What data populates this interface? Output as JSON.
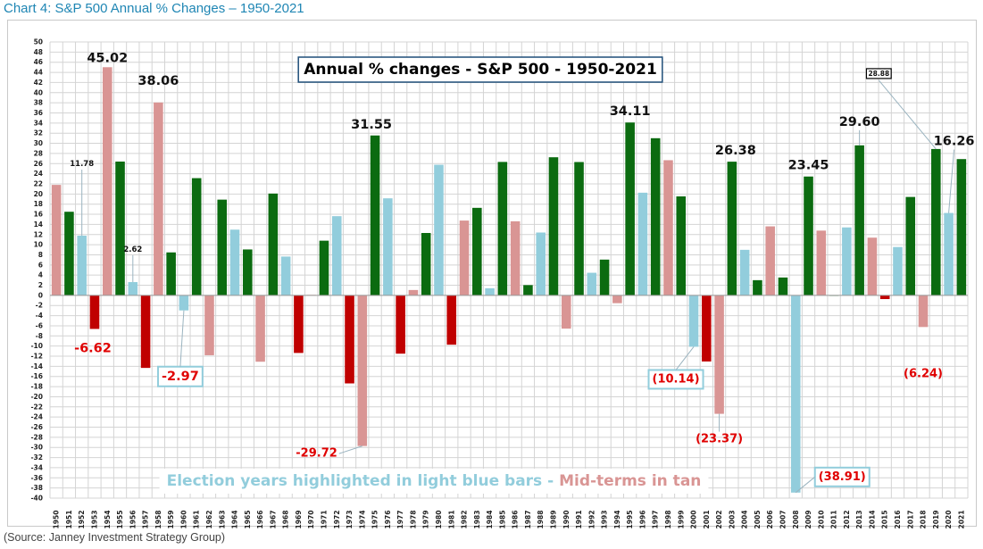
{
  "heading": "Chart 4: S&P 500 Annual % Changes – 1950-2021",
  "source": "(Source: Janney Investment Strategy Group)",
  "colors": {
    "positive_regular": "#0b6b10",
    "negative_regular": "#c00000",
    "election_year": "#92cddc",
    "midterm_year": "#d99594",
    "label_red": "#e00000",
    "grid": "#d4d4d4"
  },
  "chart_data": {
    "type": "bar",
    "title": "Annual % changes - S&P 500 - 1950-2021",
    "xlabel": "",
    "ylabel": "",
    "ylim": [
      -40,
      50
    ],
    "ytick_step": 2,
    "grid": true,
    "categories": [
      "1950",
      "1951",
      "1952",
      "1953",
      "1954",
      "1955",
      "1956",
      "1957",
      "1958",
      "1959",
      "1960",
      "1961",
      "1962",
      "1963",
      "1964",
      "1965",
      "1966",
      "1967",
      "1968",
      "1969",
      "1970",
      "1971",
      "1972",
      "1973",
      "1974",
      "1975",
      "1976",
      "1977",
      "1978",
      "1979",
      "1980",
      "1981",
      "1982",
      "1983",
      "1984",
      "1985",
      "1986",
      "1987",
      "1988",
      "1989",
      "1990",
      "1991",
      "1992",
      "1993",
      "1994",
      "1995",
      "1996",
      "1997",
      "1998",
      "1999",
      "2000",
      "2001",
      "2002",
      "2003",
      "2004",
      "2005",
      "2006",
      "2007",
      "2008",
      "2009",
      "2010",
      "2011",
      "2012",
      "2013",
      "2014",
      "2015",
      "2016",
      "2017",
      "2018",
      "2019",
      "2020",
      "2021"
    ],
    "values": [
      21.8,
      16.5,
      11.78,
      -6.62,
      45.02,
      26.4,
      2.62,
      -14.31,
      38.06,
      8.48,
      -2.97,
      23.13,
      -11.81,
      18.89,
      12.97,
      9.06,
      -13.09,
      20.09,
      7.66,
      -11.36,
      0.1,
      10.79,
      15.63,
      -17.37,
      -29.72,
      31.55,
      19.15,
      -11.5,
      1.06,
      12.31,
      25.77,
      -9.73,
      14.76,
      17.27,
      1.4,
      26.33,
      14.62,
      2.03,
      12.4,
      27.25,
      -6.56,
      26.31,
      4.46,
      7.06,
      -1.54,
      34.11,
      20.26,
      31.01,
      26.67,
      19.53,
      -10.14,
      -13.04,
      -23.37,
      26.38,
      8.99,
      3.0,
      13.62,
      3.53,
      -38.91,
      23.45,
      12.78,
      0.0,
      13.41,
      29.6,
      11.39,
      -0.73,
      9.54,
      19.42,
      -6.24,
      28.88,
      16.26,
      26.89
    ],
    "bar_types": [
      "mid",
      "reg",
      "elec",
      "reg",
      "mid",
      "reg",
      "elec",
      "reg",
      "mid",
      "reg",
      "elec",
      "reg",
      "mid",
      "reg",
      "elec",
      "reg",
      "mid",
      "reg",
      "elec",
      "reg",
      "mid",
      "reg",
      "elec",
      "reg",
      "mid",
      "reg",
      "elec",
      "reg",
      "mid",
      "reg",
      "elec",
      "reg",
      "mid",
      "reg",
      "elec",
      "reg",
      "mid",
      "reg",
      "elec",
      "reg",
      "mid",
      "reg",
      "elec",
      "reg",
      "mid",
      "reg",
      "elec",
      "reg",
      "mid",
      "reg",
      "elec",
      "reg",
      "mid",
      "reg",
      "elec",
      "reg",
      "mid",
      "reg",
      "elec",
      "reg",
      "mid",
      "reg",
      "elec",
      "reg",
      "mid",
      "reg",
      "elec",
      "reg",
      "mid",
      "reg",
      "elec",
      "reg"
    ],
    "annotations": [
      {
        "year": "1954",
        "text": "45.02",
        "style": "plain",
        "size": "lg"
      },
      {
        "year": "1958",
        "text": "38.06",
        "style": "plain",
        "size": "lg"
      },
      {
        "year": "1952",
        "text": "11.78",
        "style": "plain",
        "size": "sm"
      },
      {
        "year": "1956",
        "text": "2.62",
        "style": "plain",
        "size": "sm"
      },
      {
        "year": "1953",
        "text": "-6.62",
        "style": "red",
        "size": "lg"
      },
      {
        "year": "1960",
        "text": "-2.97",
        "style": "boxed-red",
        "size": "lg"
      },
      {
        "year": "1974",
        "text": "-29.72",
        "style": "red",
        "size": "md"
      },
      {
        "year": "1975",
        "text": "31.55",
        "style": "plain",
        "size": "lg"
      },
      {
        "year": "1995",
        "text": "34.11",
        "style": "plain",
        "size": "lg"
      },
      {
        "year": "2003",
        "text": "26.38",
        "style": "plain",
        "size": "lg"
      },
      {
        "year": "2000",
        "text": "(10.14)",
        "style": "boxed-red",
        "size": "md"
      },
      {
        "year": "2002",
        "text": "(23.37)",
        "style": "red",
        "size": "md"
      },
      {
        "year": "2009",
        "text": "23.45",
        "style": "plain",
        "size": "lg"
      },
      {
        "year": "2008",
        "text": "(38.91)",
        "style": "boxed-red",
        "size": "md"
      },
      {
        "year": "2013",
        "text": "29.60",
        "style": "plain",
        "size": "lg"
      },
      {
        "year": "2019",
        "text": "28.88",
        "style": "boxed-plain",
        "size": "xs"
      },
      {
        "year": "2020",
        "text": "16.26",
        "style": "plain",
        "size": "lg"
      },
      {
        "year": "2018",
        "text": "(6.24)",
        "style": "red",
        "size": "md"
      }
    ],
    "legend_part1": "Election years highlighted in light blue bars - ",
    "legend_part2": "Mid-terms in tan",
    "legend_placement": "bottom"
  }
}
